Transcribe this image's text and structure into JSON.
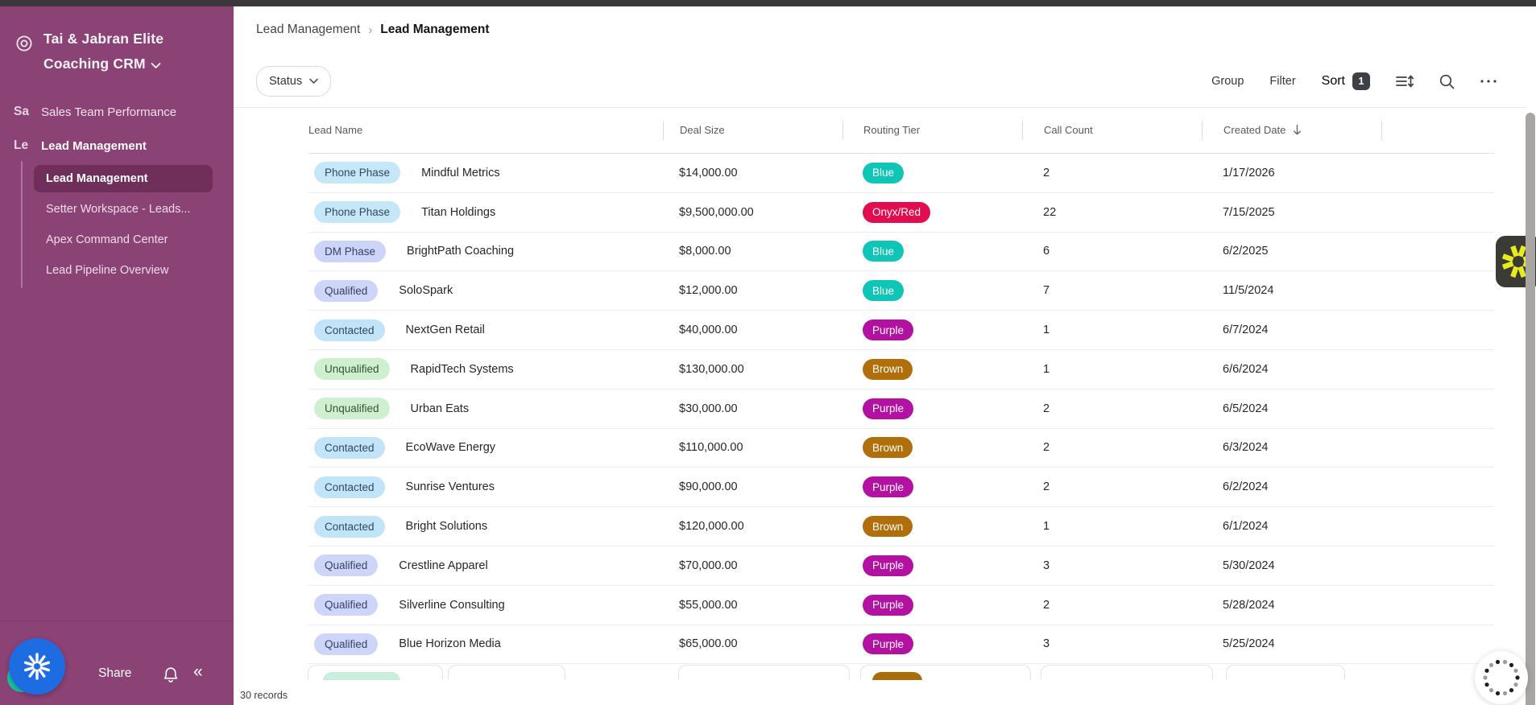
{
  "app": {
    "title": "Tai & Jabran Elite Coaching CRM"
  },
  "sidebar": {
    "top_items": [
      {
        "initials": "Sa",
        "label": "Sales Team Performance"
      },
      {
        "initials": "Le",
        "label": "Lead Management"
      }
    ],
    "sub_items": [
      {
        "label": "Lead Management",
        "selected": true
      },
      {
        "label": "Setter Workspace - Leads..."
      },
      {
        "label": "Apex Command Center"
      },
      {
        "label": "Lead Pipeline Overview"
      }
    ],
    "footer": {
      "share_label": "Share"
    }
  },
  "breadcrumb": {
    "parent": "Lead Management",
    "current": "Lead Management"
  },
  "toolbar": {
    "status_label": "Status",
    "group_label": "Group",
    "filter_label": "Filter",
    "sort_label": "Sort",
    "sort_count": "1"
  },
  "table": {
    "columns": [
      {
        "label": "Lead Name"
      },
      {
        "label": "Deal Size"
      },
      {
        "label": "Routing Tier"
      },
      {
        "label": "Call Count"
      },
      {
        "label": "Created Date",
        "sorted": true
      }
    ],
    "rows": [
      {
        "status": "Phone Phase",
        "status_variant": "phone",
        "name": "Mindful Metrics",
        "deal": "$14,000.00",
        "tier": "Blue",
        "tier_variant": "teal",
        "calls": "2",
        "date": "1/17/2026"
      },
      {
        "status": "Phone Phase",
        "status_variant": "phone",
        "name": "Titan Holdings",
        "deal": "$9,500,000.00",
        "tier": "Onyx/Red",
        "tier_variant": "red",
        "calls": "22",
        "date": "7/15/2025"
      },
      {
        "status": "DM Phase",
        "status_variant": "dm",
        "name": "BrightPath Coaching",
        "deal": "$8,000.00",
        "tier": "Blue",
        "tier_variant": "teal",
        "calls": "6",
        "date": "6/2/2025"
      },
      {
        "status": "Qualified",
        "status_variant": "qualified",
        "name": "SoloSpark",
        "deal": "$12,000.00",
        "tier": "Blue",
        "tier_variant": "teal",
        "calls": "7",
        "date": "11/5/2024"
      },
      {
        "status": "Contacted",
        "status_variant": "contacted",
        "name": "NextGen Retail",
        "deal": "$40,000.00",
        "tier": "Purple",
        "tier_variant": "magenta",
        "calls": "1",
        "date": "6/7/2024"
      },
      {
        "status": "Unqualified",
        "status_variant": "unqualified",
        "name": "RapidTech Systems",
        "deal": "$130,000.00",
        "tier": "Brown",
        "tier_variant": "brown",
        "calls": "1",
        "date": "6/6/2024"
      },
      {
        "status": "Unqualified",
        "status_variant": "unqualified",
        "name": "Urban Eats",
        "deal": "$30,000.00",
        "tier": "Purple",
        "tier_variant": "magenta",
        "calls": "2",
        "date": "6/5/2024"
      },
      {
        "status": "Contacted",
        "status_variant": "contacted",
        "name": "EcoWave Energy",
        "deal": "$110,000.00",
        "tier": "Brown",
        "tier_variant": "brown",
        "calls": "2",
        "date": "6/3/2024"
      },
      {
        "status": "Contacted",
        "status_variant": "contacted",
        "name": "Sunrise Ventures",
        "deal": "$90,000.00",
        "tier": "Purple",
        "tier_variant": "magenta",
        "calls": "2",
        "date": "6/2/2024"
      },
      {
        "status": "Contacted",
        "status_variant": "contacted",
        "name": "Bright Solutions",
        "deal": "$120,000.00",
        "tier": "Brown",
        "tier_variant": "brown",
        "calls": "1",
        "date": "6/1/2024"
      },
      {
        "status": "Qualified",
        "status_variant": "qualified",
        "name": "Crestline Apparel",
        "deal": "$70,000.00",
        "tier": "Purple",
        "tier_variant": "magenta",
        "calls": "3",
        "date": "5/30/2024"
      },
      {
        "status": "Qualified",
        "status_variant": "qualified",
        "name": "Silverline Consulting",
        "deal": "$55,000.00",
        "tier": "Purple",
        "tier_variant": "magenta",
        "calls": "2",
        "date": "5/28/2024"
      },
      {
        "status": "Qualified",
        "status_variant": "qualified",
        "name": "Blue Horizon Media",
        "deal": "$65,000.00",
        "tier": "Purple",
        "tier_variant": "magenta",
        "calls": "3",
        "date": "5/25/2024"
      }
    ]
  },
  "footer": {
    "record_count": "30 records"
  },
  "colors": {
    "sidebar_purple": "#8b4274",
    "sidebar_selected": "#6f2f5a",
    "topbar_dark": "#3a383a",
    "tier_blue": "#0ec5b6",
    "tier_onyx_red": "#e20c50",
    "tier_purple": "#b211a1",
    "tier_brown": "#b06f0b",
    "status_phone": "#c6e7f8",
    "status_dm": "#ccd4f9",
    "status_qualified": "#cdd5f9",
    "status_contacted": "#c2e4f9",
    "status_unqualified": "#cff0cf",
    "ai_button_blue": "#1e6ce2",
    "teal_dot": "#14c3a4",
    "widget_yellow": "#e6ec20"
  }
}
